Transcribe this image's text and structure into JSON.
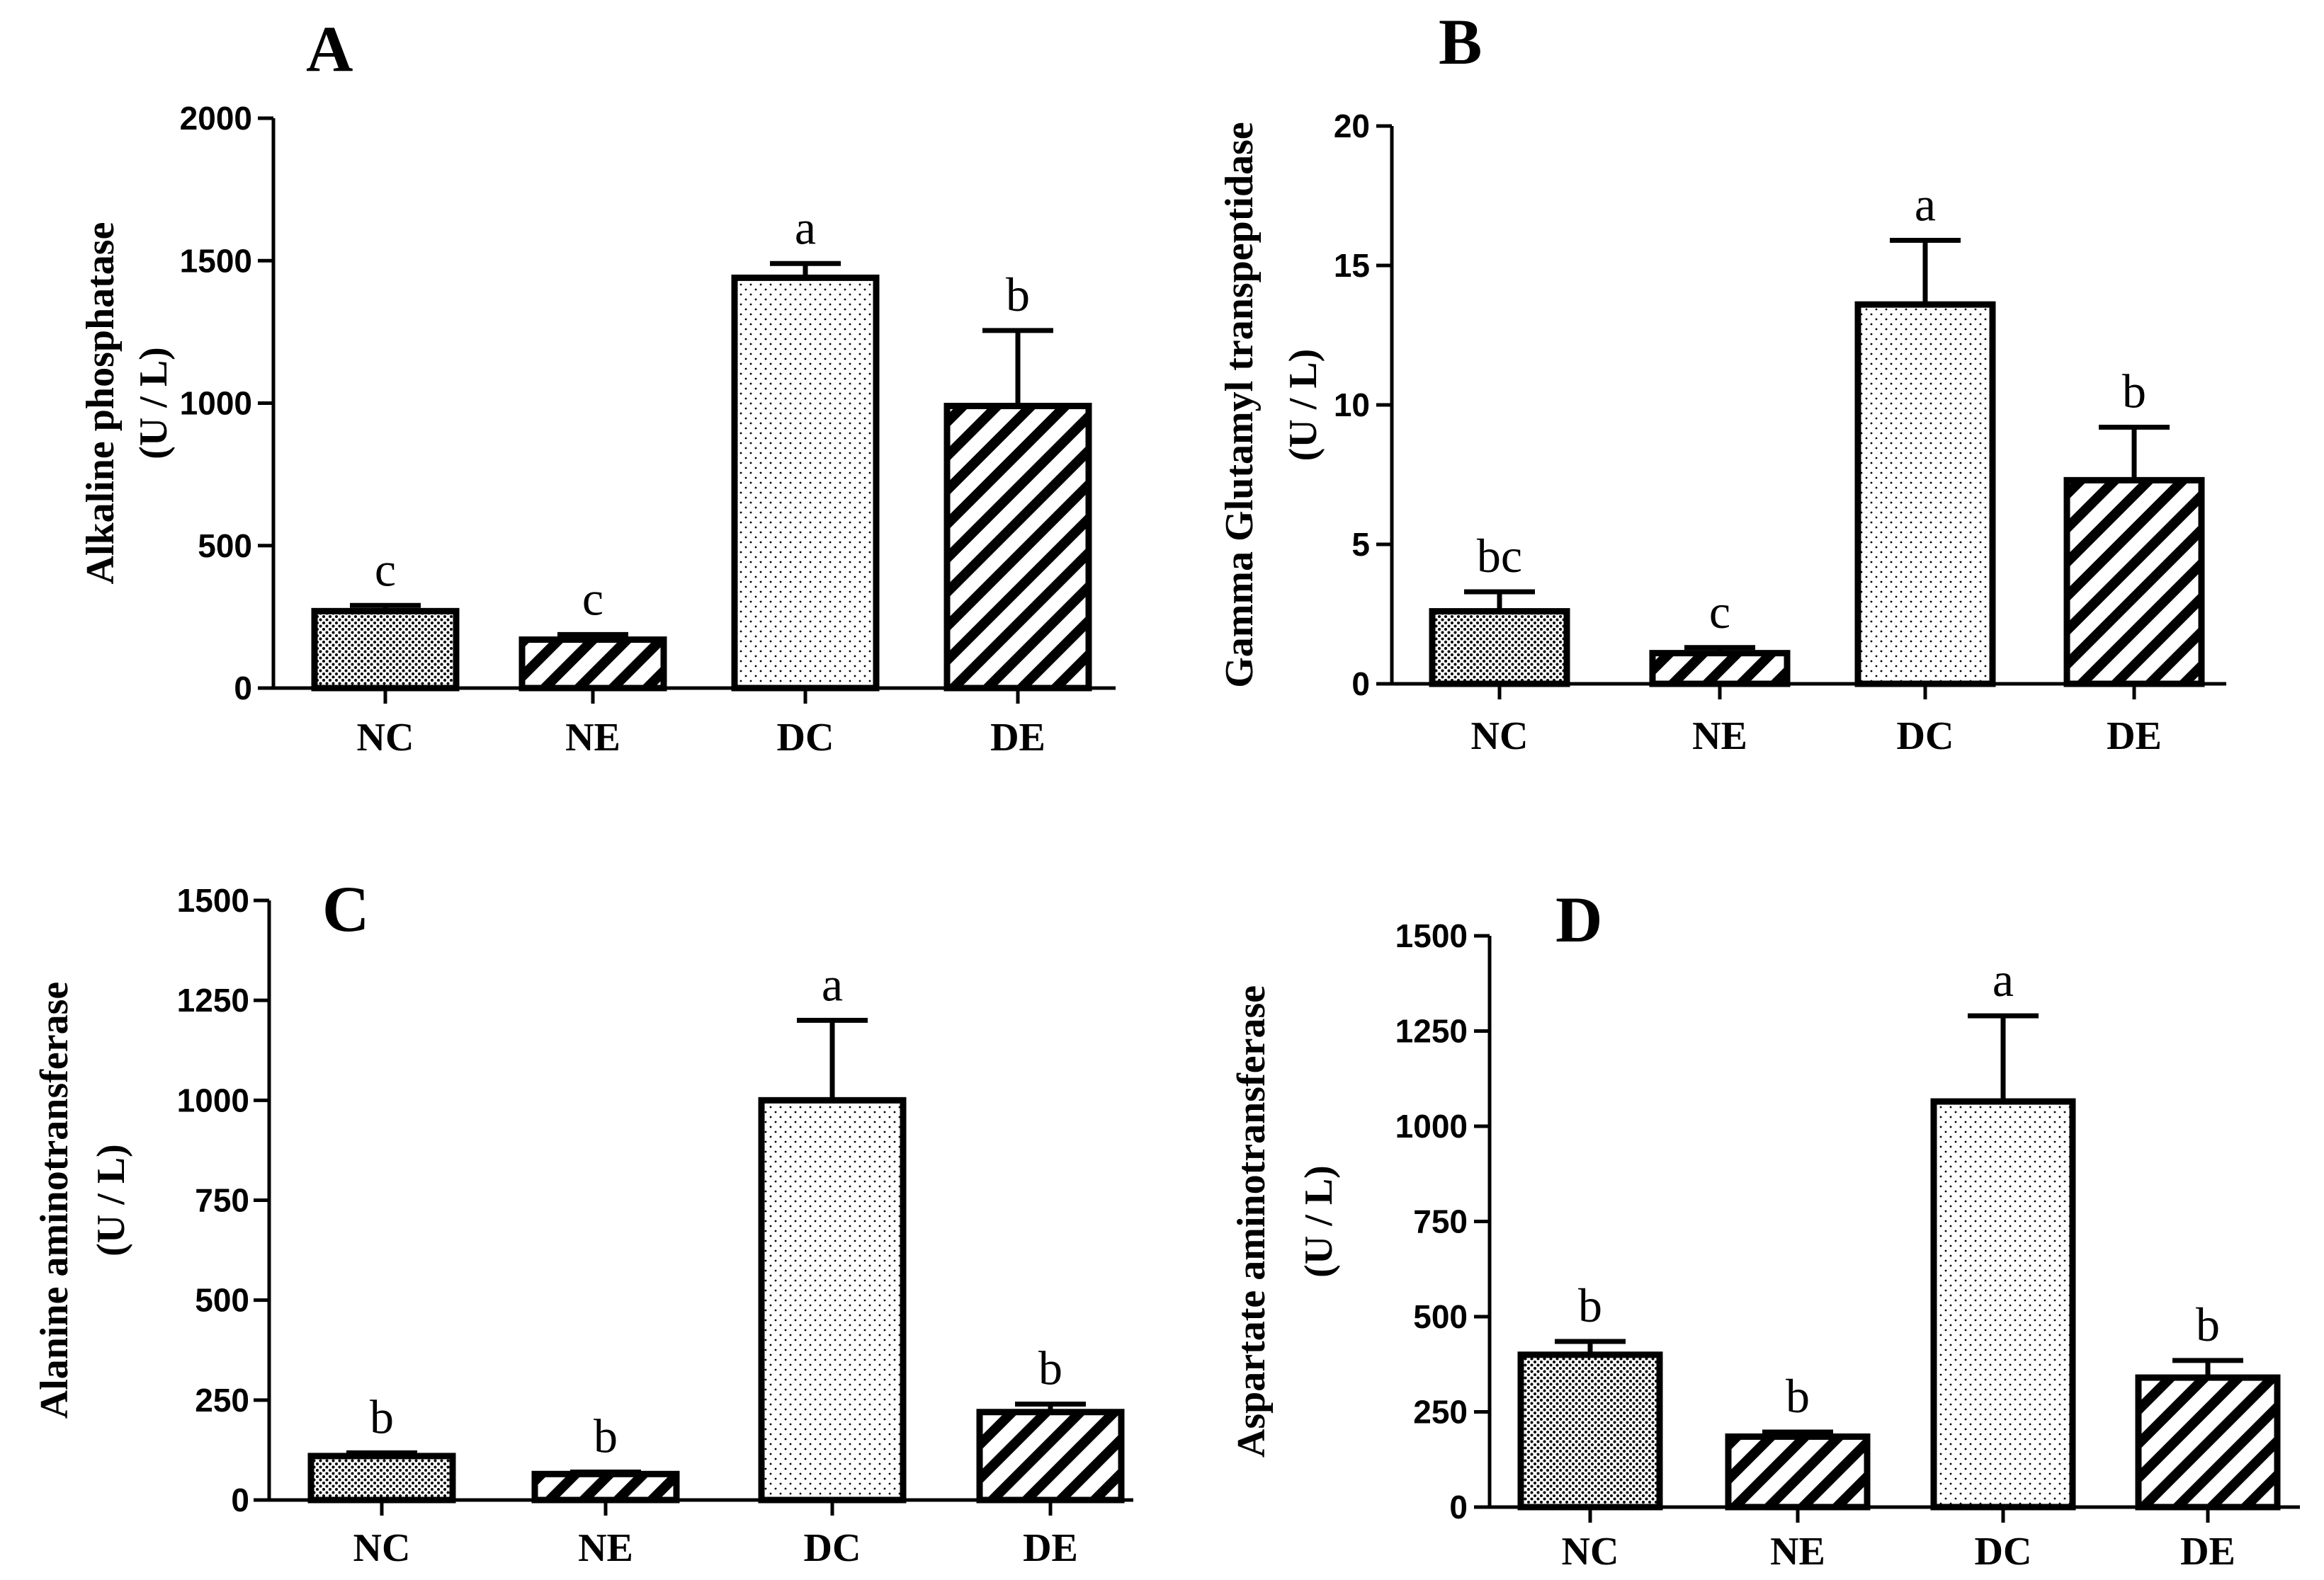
{
  "figure": {
    "panel_count": 4
  },
  "chart_data": [
    {
      "type": "bar",
      "panel_label": "A",
      "title": "",
      "ylabel_line1": "Alkaline phosphatase",
      "ylabel_line2": "(U / L)",
      "xlabel": "",
      "categories": [
        "NC",
        "NE",
        "DC",
        "DE"
      ],
      "values": [
        270,
        170,
        1440,
        990
      ],
      "errors": [
        20,
        18,
        50,
        265
      ],
      "significance": [
        "c",
        "c",
        "a",
        "b"
      ],
      "patterns": [
        "dense-dots",
        "hatch",
        "sparse-dots",
        "hatch"
      ],
      "ylim": [
        0,
        2000
      ],
      "yticks": [
        0,
        500,
        1000,
        1500,
        2000
      ],
      "ytick_labels": [
        "0",
        "500",
        "1000",
        "1500",
        "2000"
      ],
      "grid": false
    },
    {
      "type": "bar",
      "panel_label": "B",
      "title": "",
      "ylabel_line1": "Gamma Glutamyl transpeptidase",
      "ylabel_line2": "(U / L)",
      "xlabel": "",
      "categories": [
        "NC",
        "NE",
        "DC",
        "DE"
      ],
      "values": [
        2.6,
        1.1,
        13.6,
        7.3
      ],
      "errors": [
        0.7,
        0.2,
        2.3,
        1.9
      ],
      "significance": [
        "bc",
        "c",
        "a",
        "b"
      ],
      "patterns": [
        "dense-dots",
        "hatch",
        "sparse-dots",
        "hatch"
      ],
      "ylim": [
        0,
        20
      ],
      "yticks": [
        0,
        5,
        10,
        15,
        20
      ],
      "ytick_labels": [
        "0",
        "5",
        "10",
        "15",
        "20"
      ],
      "grid": false
    },
    {
      "type": "bar",
      "panel_label": "C",
      "title": "",
      "ylabel_line1": "Alanine aminotransferase",
      "ylabel_line2": "(U / L)",
      "xlabel": "",
      "categories": [
        "NC",
        "NE",
        "DC",
        "DE"
      ],
      "values": [
        110,
        65,
        1000,
        220
      ],
      "errors": [
        8,
        5,
        200,
        20
      ],
      "significance": [
        "b",
        "b",
        "a",
        "b"
      ],
      "patterns": [
        "dense-dots",
        "hatch",
        "sparse-dots",
        "hatch"
      ],
      "ylim": [
        0,
        1500
      ],
      "yticks": [
        0,
        250,
        500,
        750,
        1000,
        1250,
        1500
      ],
      "ytick_labels": [
        "0",
        "250",
        "500",
        "750",
        "1000",
        "1250",
        "1500"
      ],
      "grid": false
    },
    {
      "type": "bar",
      "panel_label": "D",
      "title": "",
      "ylabel_line1": "Aspartate aminotransferase",
      "ylabel_line2": "(U / L)",
      "xlabel": "",
      "categories": [
        "NC",
        "NE",
        "DC",
        "DE"
      ],
      "values": [
        400,
        185,
        1065,
        340
      ],
      "errors": [
        35,
        12,
        225,
        45
      ],
      "significance": [
        "b",
        "b",
        "a",
        "b"
      ],
      "patterns": [
        "dense-dots",
        "hatch",
        "sparse-dots",
        "hatch"
      ],
      "ylim": [
        0,
        1500
      ],
      "yticks": [
        0,
        250,
        500,
        750,
        1000,
        1250,
        1500
      ],
      "ytick_labels": [
        "0",
        "250",
        "500",
        "750",
        "1000",
        "1250",
        "1500"
      ],
      "grid": false
    }
  ]
}
